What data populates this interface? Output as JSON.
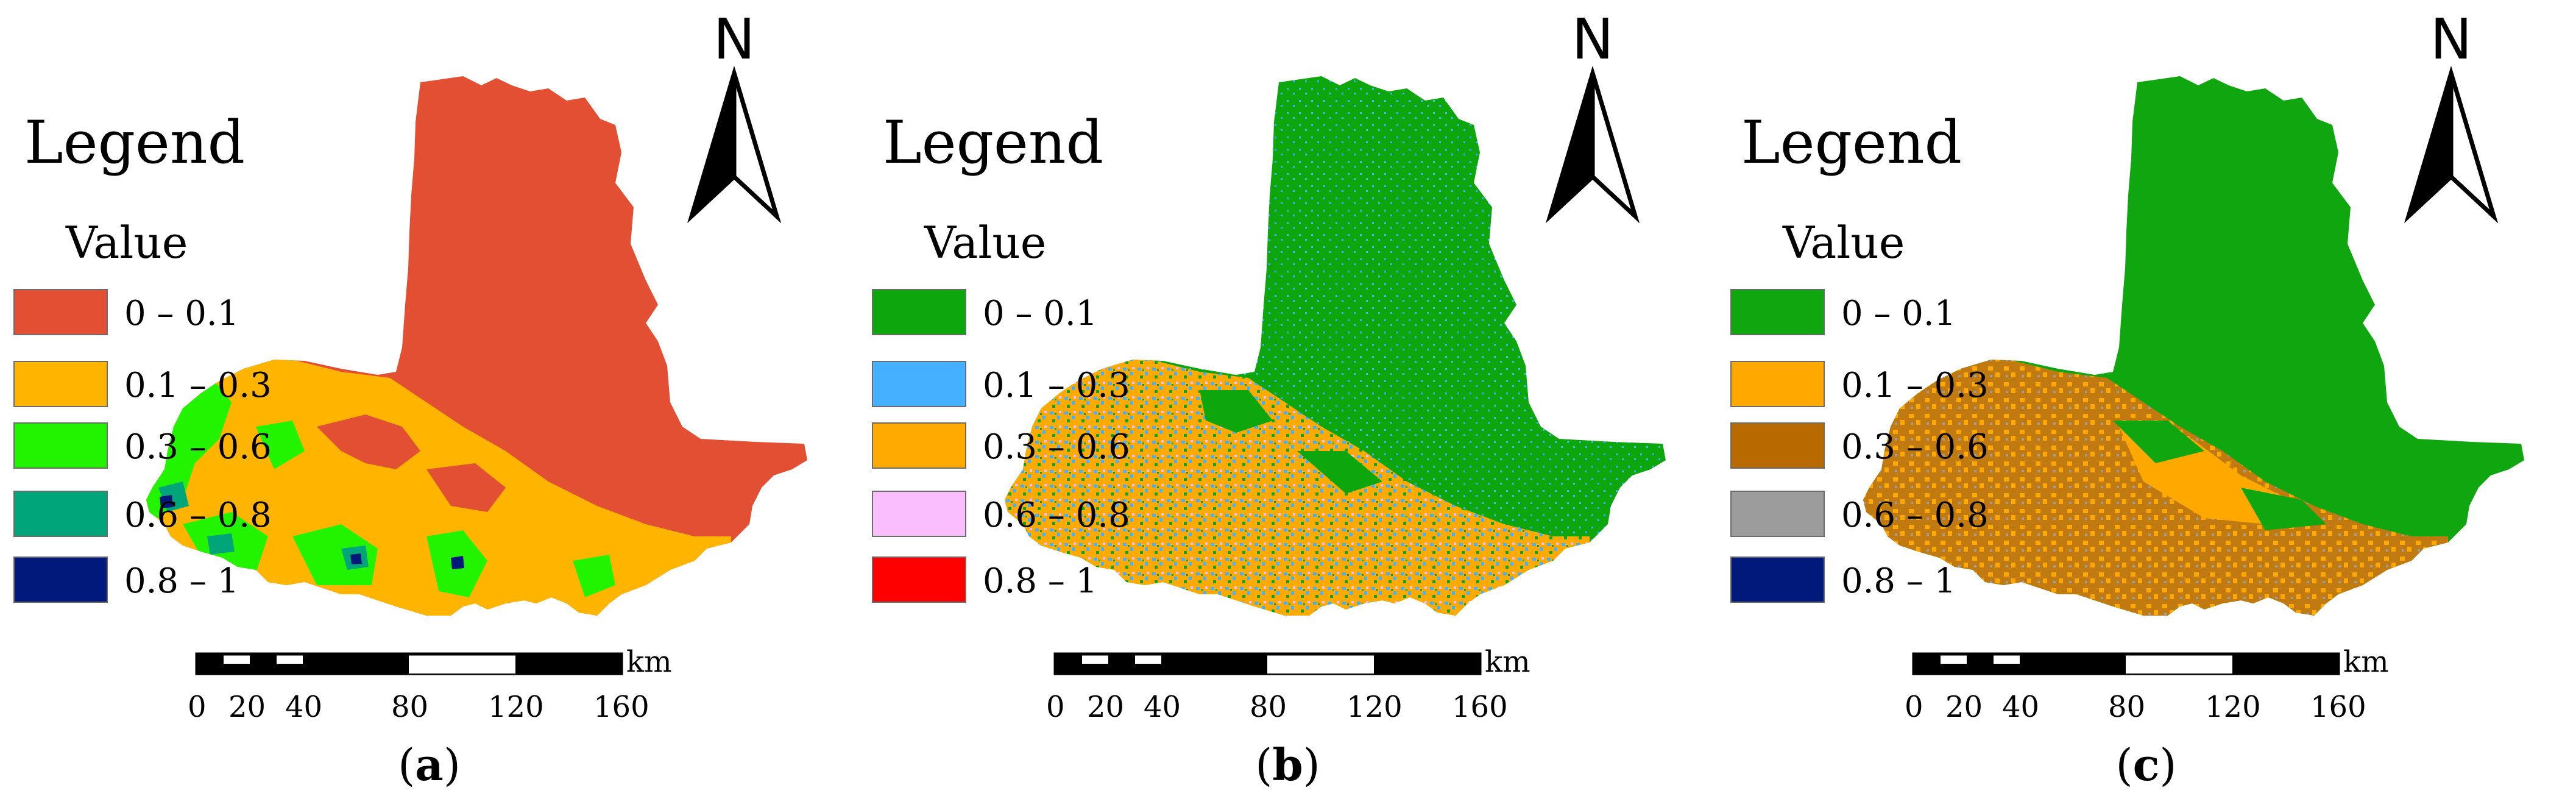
{
  "legend_title": "Legend",
  "value_title": "Value",
  "north_label": "N",
  "scale_bar": {
    "unit": "km",
    "ticks": [
      "0",
      "20",
      "40",
      "80",
      "120",
      "160"
    ]
  },
  "panels": [
    {
      "caption_open": "(",
      "caption_letter": "a",
      "caption_close": ")",
      "base_color": "#E24F33",
      "legend": [
        {
          "label": "0 – 0.1",
          "color": "#E24F33"
        },
        {
          "label": "0.1 – 0.3",
          "color": "#FFB400"
        },
        {
          "label": "0.3 – 0.6",
          "color": "#22F400"
        },
        {
          "label": "0.6 – 0.8",
          "color": "#00A57A"
        },
        {
          "label": "0.8 – 1",
          "color": "#00197A"
        }
      ]
    },
    {
      "caption_open": "(",
      "caption_letter": "b",
      "caption_close": ")",
      "base_color": "#0DA60D",
      "legend": [
        {
          "label": "0 – 0.1",
          "color": "#0DA60D"
        },
        {
          "label": "0.1 – 0.3",
          "color": "#45B0FF"
        },
        {
          "label": "0.3 – 0.6",
          "color": "#FFAA00"
        },
        {
          "label": "0.6 – 0.8",
          "color": "#FABEFF"
        },
        {
          "label": "0.8 – 1",
          "color": "#FF0000"
        }
      ]
    },
    {
      "caption_open": "(",
      "caption_letter": "c",
      "caption_close": ")",
      "base_color": "#10A610",
      "legend": [
        {
          "label": "0 – 0.1",
          "color": "#10A610"
        },
        {
          "label": "0.1 – 0.3",
          "color": "#FFA800"
        },
        {
          "label": "0.3 – 0.6",
          "color": "#B86A00"
        },
        {
          "label": "0.6 – 0.8",
          "color": "#9C9C9C"
        },
        {
          "label": "0.8 – 1",
          "color": "#00197A"
        }
      ]
    }
  ]
}
